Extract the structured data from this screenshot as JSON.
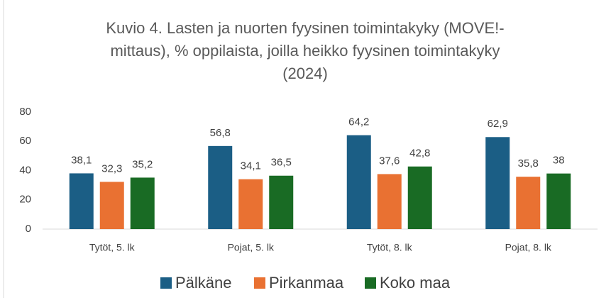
{
  "chart_data": {
    "type": "bar",
    "title": "Kuvio 4. Lasten ja nuorten fyysinen toimintakyky (MOVE!-mittaus), % oppilaista, joilla heikko fyysinen toimintakyky (2024)",
    "categories": [
      "Tytöt, 5. lk",
      "Pojat, 5. lk",
      "Tytöt, 8. lk",
      "Pojat, 8. lk"
    ],
    "series": [
      {
        "name": "Pälkäne",
        "color": "#1b5e85",
        "values": [
          38.1,
          56.8,
          64.2,
          62.9
        ],
        "value_labels": [
          "38,1",
          "56,8",
          "64,2",
          "62,9"
        ]
      },
      {
        "name": "Pirkanmaa",
        "color": "#e97132",
        "values": [
          32.3,
          34.1,
          37.6,
          35.8
        ],
        "value_labels": [
          "32,3",
          "34,1",
          "37,6",
          "35,8"
        ]
      },
      {
        "name": "Koko maa",
        "color": "#196b24",
        "values": [
          35.2,
          36.5,
          42.8,
          38
        ],
        "value_labels": [
          "35,2",
          "36,5",
          "42,8",
          "38"
        ]
      }
    ],
    "ylim": [
      0,
      80
    ],
    "yticks": [
      0,
      20,
      40,
      60,
      80
    ],
    "grid": false,
    "legend": "bottom"
  }
}
